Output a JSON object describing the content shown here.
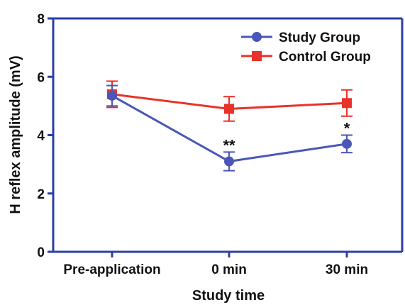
{
  "chart_data": {
    "type": "line",
    "title": "",
    "xlabel": "Study time",
    "ylabel": "H reflex amplitude (mV)",
    "categories": [
      "Pre-application",
      "0 min",
      "30 min"
    ],
    "ylim": [
      0,
      8
    ],
    "yticks": [
      "0",
      "2",
      "4",
      "6",
      "8"
    ],
    "grid": false,
    "legend_position": "top-right",
    "series": [
      {
        "name": "Study Group",
        "color": "#4a57b8",
        "marker": "circle",
        "values": [
          5.35,
          3.1,
          3.7
        ],
        "error": [
          0.35,
          0.32,
          0.3
        ]
      },
      {
        "name": "Control Group",
        "color": "#e8332a",
        "marker": "square",
        "values": [
          5.4,
          4.9,
          5.1
        ],
        "error": [
          0.45,
          0.42,
          0.45
        ]
      }
    ],
    "annotations": [
      {
        "category": "0 min",
        "text": "**"
      },
      {
        "category": "30 min",
        "text": "*"
      }
    ]
  }
}
